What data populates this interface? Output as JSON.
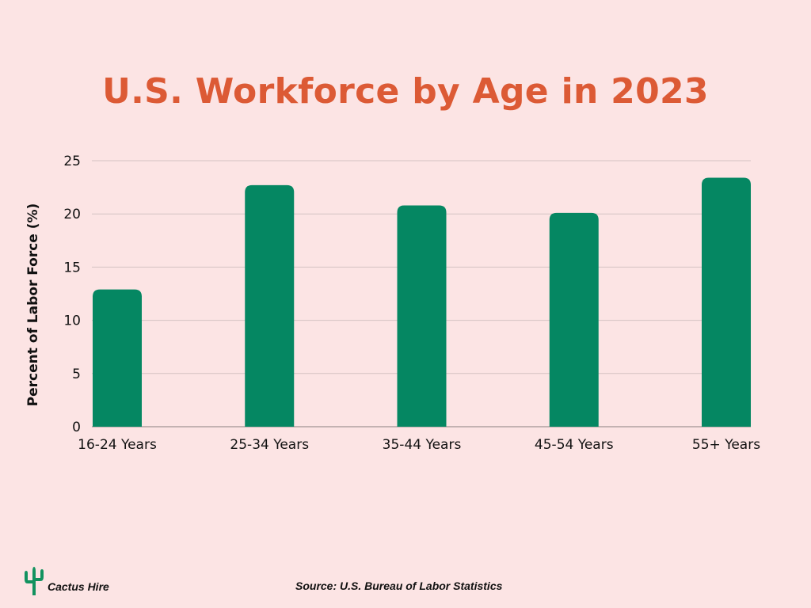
{
  "title": "U.S. Workforce by Age in 2023",
  "source": "Source: U.S. Bureau of Labor Statistics",
  "brand": {
    "name": "Cactus Hire",
    "icon": "cactus-icon"
  },
  "colors": {
    "background": "#fce4e4",
    "title": "#dc5a35",
    "bar": "#058762",
    "grid": "#d4c2c2",
    "text": "#111111"
  },
  "chart_data": {
    "type": "bar",
    "title": "U.S. Workforce by Age in 2023",
    "categories": [
      "16-24 Years",
      "25-34 Years",
      "35-44 Years",
      "45-54 Years",
      "55+ Years"
    ],
    "values": [
      12.9,
      22.7,
      20.8,
      20.1,
      23.4
    ],
    "xlabel": "",
    "ylabel": "Percent of Labor Force (%)",
    "ylim": [
      0,
      25
    ],
    "yticks": [
      0,
      5,
      10,
      15,
      20,
      25
    ],
    "grid": true,
    "legend": "none"
  }
}
